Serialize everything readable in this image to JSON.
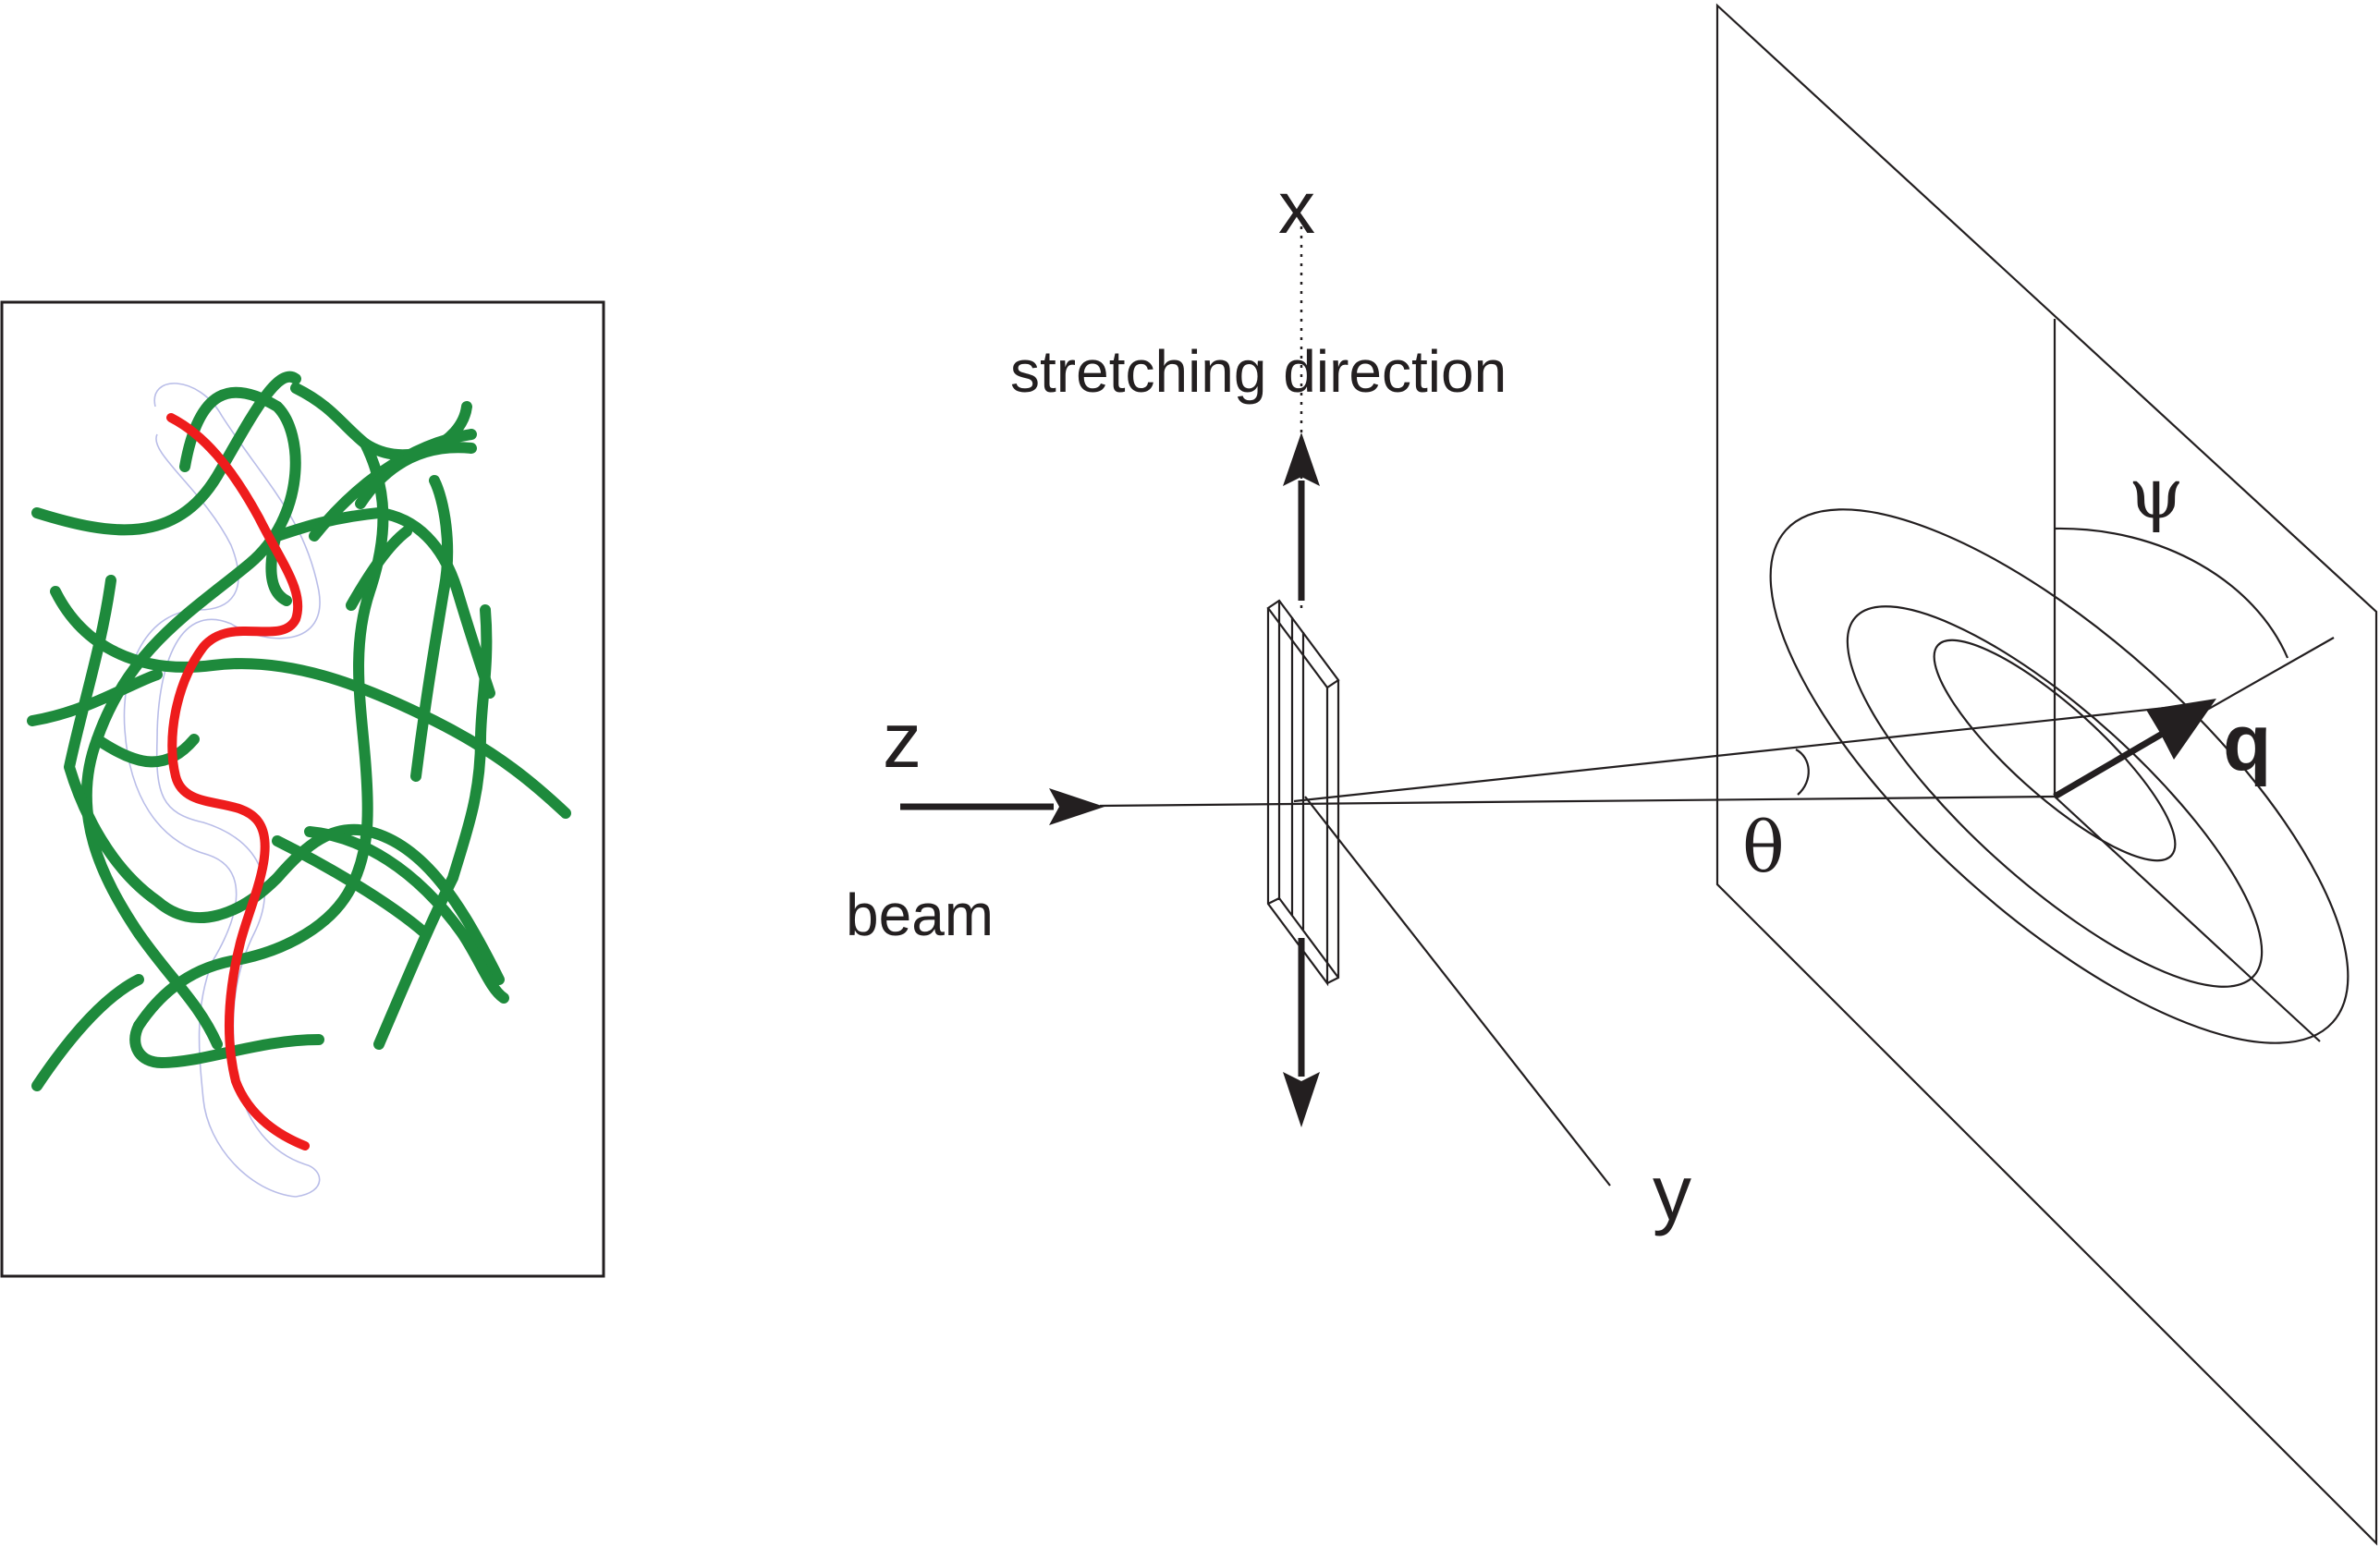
{
  "labels": {
    "x_axis": "x",
    "stretching_direction": "stretching direction",
    "z_axis": "z",
    "beam": "beam",
    "y_axis": "y",
    "theta": "θ",
    "psi": "ψ",
    "q_vector": "q"
  },
  "colors": {
    "ink": "#231f20",
    "chain_network": "#1e8a3c",
    "probe_chain": "#ee1c1c",
    "tube_outline": "#b9bde8"
  }
}
